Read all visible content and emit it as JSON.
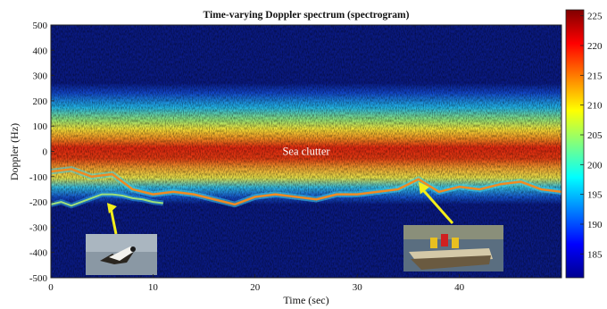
{
  "chart_data": {
    "type": "heatmap",
    "title": "Time-varying Doppler spectrum (spectrogram)",
    "xlabel": "Time (sec)",
    "ylabel": "Doppler (Hz)",
    "xlim": [
      0,
      50
    ],
    "ylim": [
      -500,
      500
    ],
    "x_ticks": [
      "0",
      "10",
      "20",
      "30",
      "40"
    ],
    "y_ticks": [
      "500",
      "400",
      "300",
      "200",
      "100",
      "0",
      "-100",
      "-200",
      "-300",
      "-400",
      "-500"
    ],
    "colorbar": {
      "range": [
        181,
        226
      ],
      "ticks": [
        "225",
        "220",
        "215",
        "210",
        "205",
        "200",
        "195",
        "190",
        "185"
      ],
      "colormap": "jet"
    },
    "sea_clutter_band": {
      "center_hz": 30,
      "core_halfwidth_hz": 90,
      "edge_halfwidth_hz": 240
    },
    "boat_track": {
      "x": [
        0,
        2,
        4,
        6,
        8,
        10,
        12,
        14,
        16,
        18,
        20,
        22,
        24,
        26,
        28,
        30,
        32,
        34,
        36,
        38,
        40,
        42,
        44,
        46,
        48,
        50
      ],
      "y": [
        -80,
        -70,
        -100,
        -90,
        -150,
        -170,
        -160,
        -170,
        -190,
        -210,
        -180,
        -170,
        -180,
        -190,
        -170,
        -170,
        -160,
        -150,
        -110,
        -160,
        -140,
        -150,
        -130,
        -120,
        -150,
        -160
      ]
    },
    "bird_track": {
      "x": [
        0,
        1,
        2,
        3,
        4,
        5,
        6,
        7,
        8,
        9,
        10,
        11
      ],
      "y": [
        -210,
        -200,
        -215,
        -200,
        -185,
        -170,
        -170,
        -175,
        -185,
        -190,
        -200,
        -205
      ]
    },
    "annotations": [
      {
        "text": "Sea clutter",
        "x": 25,
        "y": 0
      }
    ],
    "insets": [
      {
        "name": "bird",
        "x": 5.5,
        "y": -200
      },
      {
        "name": "boat",
        "x": 36,
        "y": -120
      }
    ],
    "colors": {
      "background": "#0a1a82",
      "clutter_core": "#e02010",
      "arrow": "#f4ee1a"
    }
  }
}
